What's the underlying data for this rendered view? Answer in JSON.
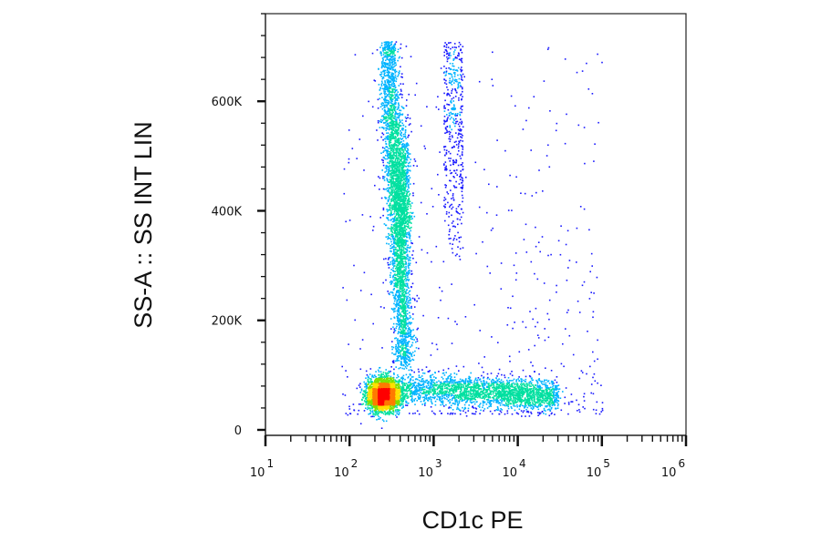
{
  "chart_data": {
    "type": "scatter",
    "style": "density-colored flow cytometry dot plot",
    "xlabel": "CD1c PE",
    "ylabel": "SS-A :: SS INT LIN",
    "x_scale": "log",
    "xlim": [
      10,
      1000000
    ],
    "x_ticks": [
      {
        "base": "10",
        "exp": "1"
      },
      {
        "base": "10",
        "exp": "2"
      },
      {
        "base": "10",
        "exp": "3"
      },
      {
        "base": "10",
        "exp": "4"
      },
      {
        "base": "10",
        "exp": "5"
      },
      {
        "base": "10",
        "exp": "6"
      }
    ],
    "y_scale": "linear",
    "ylim": [
      -10000,
      760000
    ],
    "y_ticks": [
      {
        "value": 0,
        "label": "0"
      },
      {
        "value": 200000,
        "label": "200K"
      },
      {
        "value": 400000,
        "label": "400K"
      },
      {
        "value": 600000,
        "label": "600K"
      }
    ],
    "grid": false,
    "legend": "none",
    "density_colors": [
      "#1a1aff",
      "#00b4ff",
      "#00e0a0",
      "#7ee000",
      "#ffe000",
      "#ff7a00",
      "#ff0000"
    ],
    "populations": [
      {
        "name": "main",
        "x_center": 250,
        "y_center": 65000,
        "x_spread_log": 0.1,
        "y_spread": 15000,
        "count": 2800
      },
      {
        "name": "column",
        "x_range": [
          250,
          550
        ],
        "y_range": [
          120000,
          735000
        ],
        "count": 3000
      },
      {
        "name": "column-secondary",
        "x_range": [
          1300,
          2200
        ],
        "y_range": [
          280000,
          735000
        ],
        "count": 500
      },
      {
        "name": "tail",
        "x_range": [
          400,
          30000
        ],
        "y_range": [
          45000,
          110000
        ],
        "count": 2200
      },
      {
        "name": "background",
        "x_range": [
          80,
          100000
        ],
        "y_range": [
          30000,
          700000
        ],
        "count": 500
      }
    ]
  }
}
